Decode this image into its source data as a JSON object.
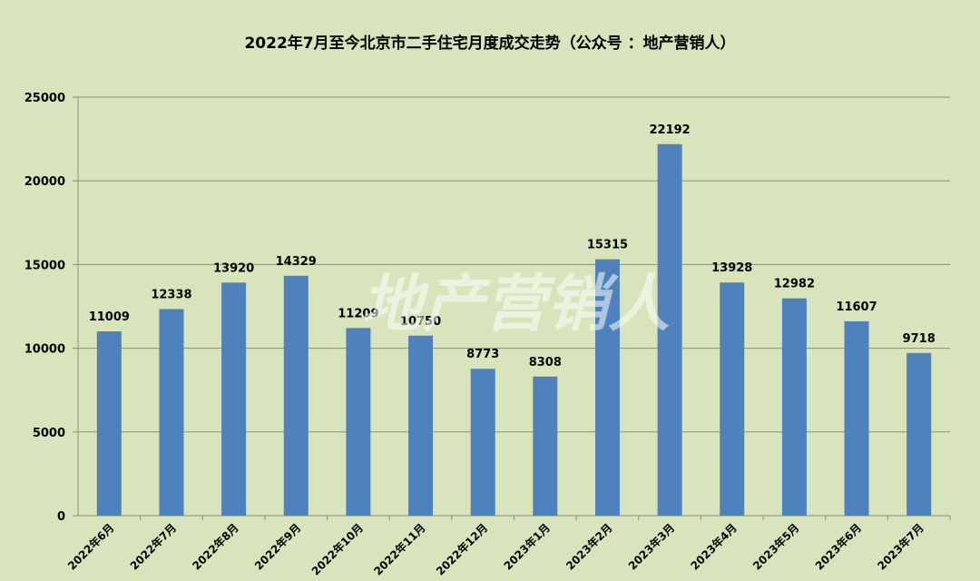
{
  "watermark": "地产营销人",
  "chart_data": {
    "type": "bar",
    "title": "2022年7月至今北京市二手住宅月度成交走势（公众号 ：地产营销人）",
    "xlabel": "",
    "ylabel": "",
    "categories": [
      "2022年6月",
      "2022年7月",
      "2022年8月",
      "2022年9月",
      "2022年10月",
      "2022年11月",
      "2022年12月",
      "2023年1月",
      "2023年2月",
      "2023年3月",
      "2023年4月",
      "2023年5月",
      "2023年6月",
      "2023年7月"
    ],
    "values": [
      11009,
      12338,
      13920,
      14329,
      11209,
      10750,
      8773,
      8308,
      15315,
      22192,
      13928,
      12982,
      11607,
      9718
    ],
    "ylim": [
      0,
      25000
    ],
    "yticks": [
      0,
      5000,
      10000,
      15000,
      20000,
      25000
    ],
    "grid": true,
    "bar_color": "#4f81bd",
    "background_color": "#d8e4bc"
  }
}
